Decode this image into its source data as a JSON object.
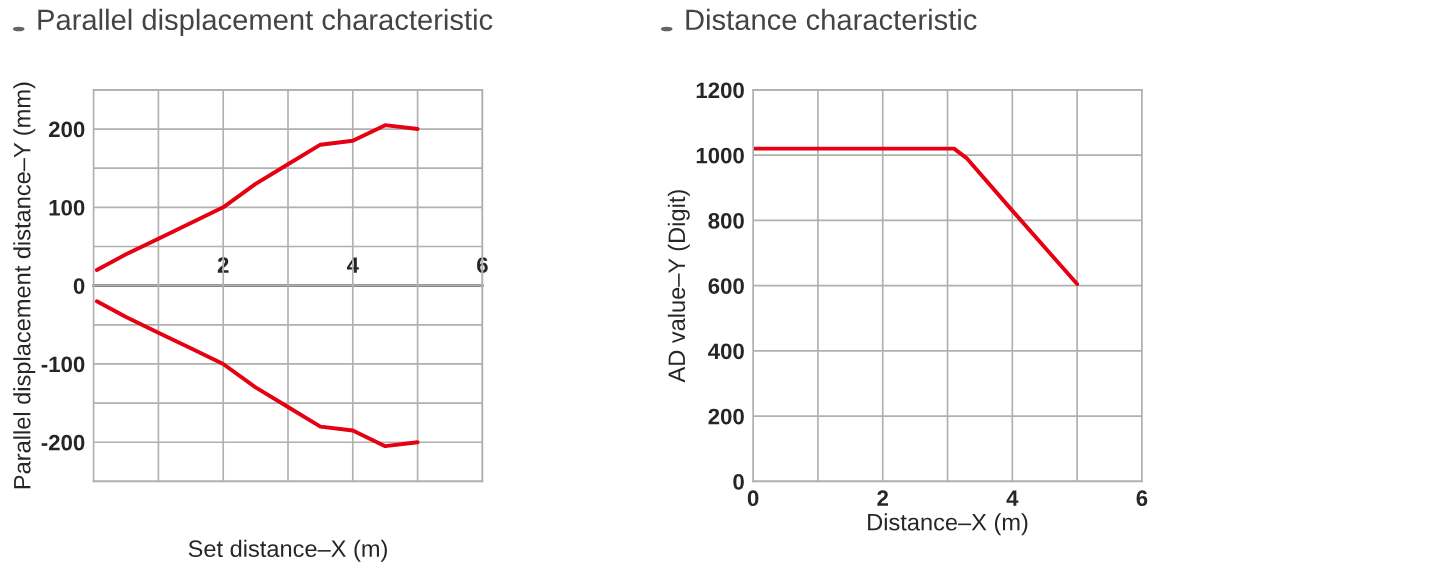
{
  "chart_data": [
    {
      "type": "line",
      "title": "Parallel displacement characteristic",
      "xlabel": "Set distance–X (m)",
      "ylabel": "Parallel displacement distance–Y (mm)",
      "x": [
        0.05,
        0.5,
        1,
        1.5,
        2,
        2.5,
        3,
        3.5,
        4,
        4.5,
        5
      ],
      "series": [
        {
          "color": "#e60012",
          "values": [
            20,
            40,
            60,
            80,
            100,
            130,
            155,
            180,
            185,
            205,
            200
          ]
        },
        {
          "color": "#e60012",
          "values": [
            -20,
            -40,
            -60,
            -80,
            -100,
            -130,
            -155,
            -180,
            -185,
            -205,
            -200
          ]
        }
      ],
      "xlim": [
        0,
        6
      ],
      "xticks": [
        {
          "value": 1,
          "label": null
        },
        2,
        {
          "value": 3,
          "label": null
        },
        4,
        {
          "value": 5,
          "label": null
        },
        6
      ],
      "ylim": [
        -250,
        250
      ],
      "yticks": [
        {
          "value": -250,
          "label": null
        },
        -200,
        {
          "value": -150,
          "label": null
        },
        -100,
        {
          "value": -50,
          "label": null
        },
        0,
        {
          "value": 50,
          "label": null
        },
        100,
        {
          "value": 150,
          "label": null
        },
        200,
        {
          "value": 250,
          "label": null
        }
      ],
      "grid": true,
      "marker": "none",
      "line_style": "solid"
    },
    {
      "type": "line",
      "title": "Distance characteristic",
      "xlabel": "Distance–X (m)",
      "ylabel": "AD value–Y (Digit)",
      "x": [
        0,
        3.1,
        3.3,
        4,
        5
      ],
      "series": [
        {
          "color": "#e60012",
          "values": [
            1020,
            1020,
            990,
            830,
            605
          ]
        }
      ],
      "xlim": [
        0,
        6
      ],
      "xticks": [
        0,
        {
          "value": 1,
          "label": null
        },
        2,
        {
          "value": 3,
          "label": null
        },
        4,
        {
          "value": 5,
          "label": null
        },
        6
      ],
      "ylim": [
        0,
        1200
      ],
      "yticks": [
        0,
        200,
        400,
        600,
        800,
        1000,
        1200
      ],
      "grid": true,
      "marker": "none",
      "line_style": "solid"
    }
  ]
}
